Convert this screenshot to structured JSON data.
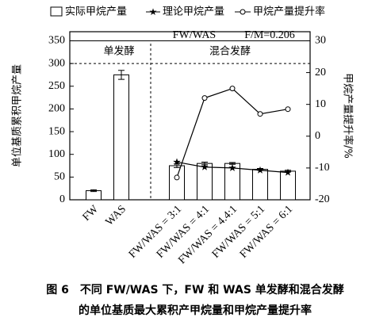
{
  "chart_data": {
    "type": "bar",
    "legend": [
      "实际甲烷产量",
      "理论甲烷产量",
      "甲烷产量提升率"
    ],
    "ylabel": "单位基质累积甲烷产量",
    "y2label": "甲烷产量提升率/%",
    "annotations": [
      "FW/WAS",
      "F/M=0.206",
      "单发酵",
      "混合发酵"
    ],
    "caption": [
      "图 6　不同 FW/WAS 下，FW 和 WAS 单发酵和混合发酵",
      "的单位基质最大累积产甲烷量和甲烷产量提升率"
    ],
    "categories": [
      "FW",
      "WAS",
      "FW/WAS = 3:1",
      "FW/WAS = 4:1",
      "FW/WAS = 4.4:1",
      "FW/WAS = 5:1",
      "FW/WAS = 6:1"
    ],
    "series": [
      {
        "name": "实际甲烷产量",
        "type": "bar",
        "color": "#ffffff",
        "values": [
          20,
          275,
          75,
          80,
          80,
          67,
          63
        ],
        "errors": [
          2,
          10,
          4,
          3,
          2,
          2,
          2
        ]
      },
      {
        "name": "理论甲烷产量",
        "type": "star-line",
        "color": "#000000",
        "values": [
          null,
          null,
          83,
          72,
          70,
          65,
          60
        ]
      },
      {
        "name": "甲烷产量提升率",
        "type": "circle-line",
        "color": "#000000",
        "axis": "y2",
        "values": [
          null,
          null,
          -13,
          12,
          15,
          7,
          8.5
        ]
      }
    ],
    "hlines": [
      {
        "value": 350,
        "style": "solid"
      },
      {
        "value": 300,
        "style": "dashed"
      }
    ],
    "ylim": [
      0,
      370
    ],
    "yticks": [
      0,
      50,
      100,
      150,
      200,
      250,
      300,
      350
    ],
    "y2lim": [
      -20,
      32.857
    ],
    "y2ticks": [
      -20,
      -10,
      0,
      10,
      20,
      30
    ]
  }
}
